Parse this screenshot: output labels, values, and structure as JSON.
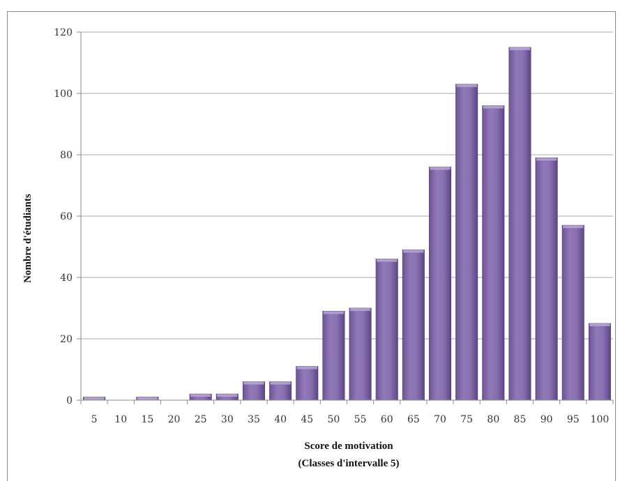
{
  "chart_data": {
    "type": "bar",
    "categories": [
      "5",
      "10",
      "15",
      "20",
      "25",
      "30",
      "35",
      "40",
      "45",
      "50",
      "55",
      "60",
      "65",
      "70",
      "75",
      "80",
      "85",
      "90",
      "95",
      "100"
    ],
    "values": [
      1,
      0,
      1,
      0,
      2,
      2,
      6,
      6,
      11,
      29,
      30,
      46,
      49,
      76,
      103,
      96,
      115,
      79,
      57,
      25
    ],
    "xlabel_line1": "Score de motivation",
    "xlabel_line2": "(Classes d'intervalle 5)",
    "ylabel": "Nombre d'étudiants",
    "ylim": [
      0,
      120
    ],
    "yticks": [
      0,
      20,
      40,
      60,
      80,
      100,
      120
    ],
    "grid": true,
    "legend": "none",
    "bar_color": "#8064a2"
  }
}
